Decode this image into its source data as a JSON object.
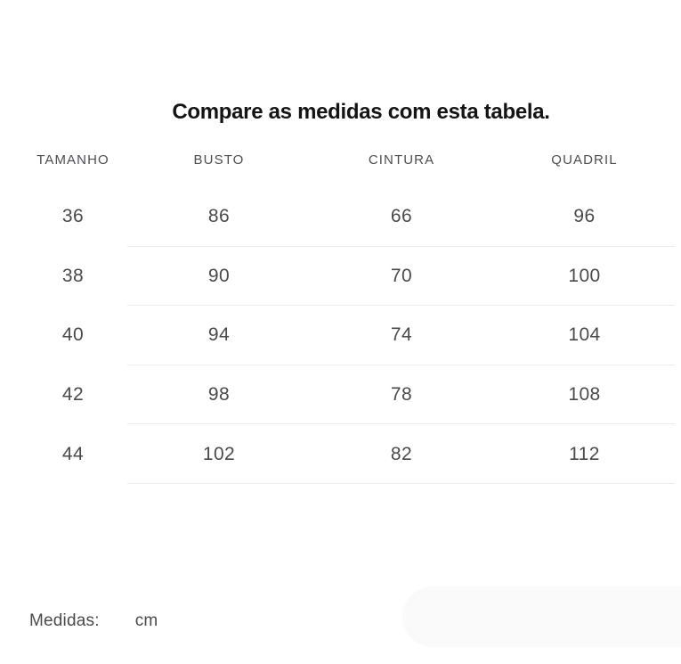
{
  "title": "Compare as medidas com esta tabela.",
  "table": {
    "headers": [
      "TAMANHO",
      "BUSTO",
      "CINTURA",
      "QUADRIL"
    ],
    "rows": [
      [
        "36",
        "86",
        "66",
        "96"
      ],
      [
        "38",
        "90",
        "70",
        "100"
      ],
      [
        "40",
        "94",
        "74",
        "104"
      ],
      [
        "42",
        "98",
        "78",
        "108"
      ],
      [
        "44",
        "102",
        "82",
        "112"
      ]
    ]
  },
  "footer": {
    "label": "Medidas:",
    "unit": "cm"
  },
  "colors": {
    "background": "#ffffff",
    "title_text": "#141414",
    "header_text": "#4a4e54",
    "cell_text": "#4a4a4c",
    "divider": "#ececec",
    "pill": "#fafafa"
  }
}
